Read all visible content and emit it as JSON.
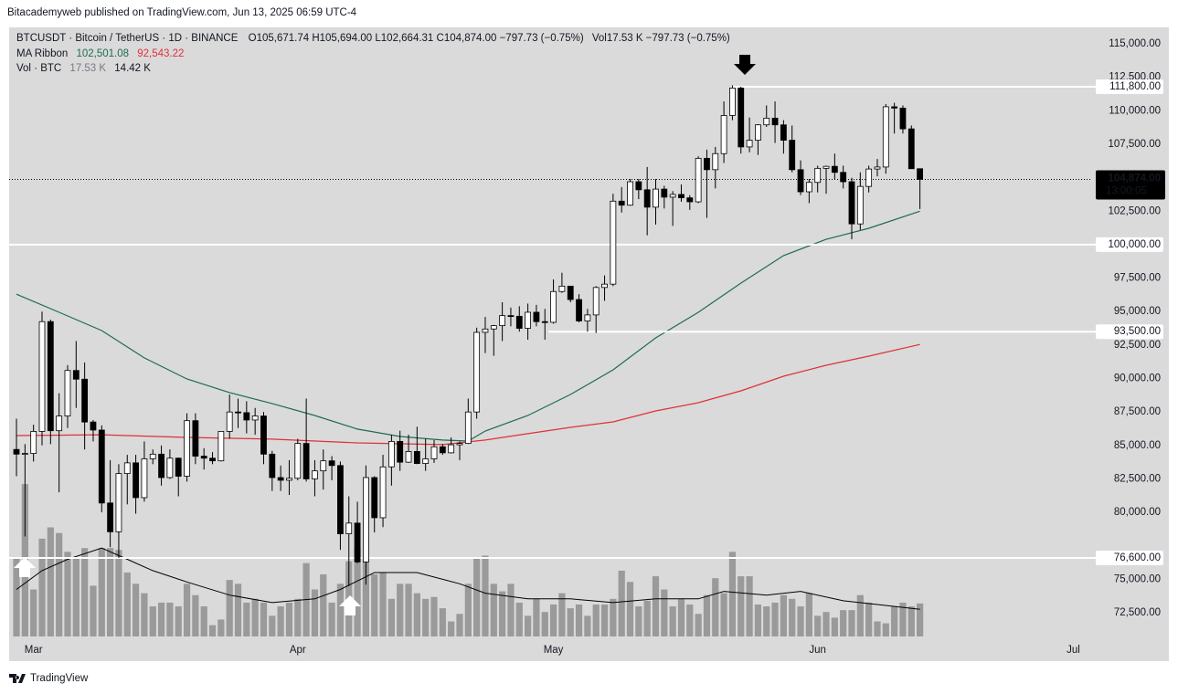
{
  "header": {
    "attribution": "Bitacademyweb published on TradingView.com, Jun 13, 2025 06:59 UTC-4",
    "symbol": "BTCUSDT · Bitcoin / TetherUS · 1D · BINANCE",
    "quote": "O105,671.74 H105,694.00 L102,664.31 C104,874.00 −797.73 (−0.75%)",
    "volume": "Vol17.53 K −797.73 (−0.75%)",
    "ma_label": "MA Ribbon",
    "ma_fast": "102,501.08",
    "ma_slow": "92,543.22",
    "vol_label": "Vol · BTC",
    "vol_value": "17.53 K",
    "vol_ma": "14.42 K"
  },
  "chart_data": {
    "type": "candlestick",
    "up_color": "#ffffff",
    "down_color": "#000000",
    "ohlc": [
      [
        84700,
        87000,
        82700,
        84350
      ],
      [
        84350,
        85100,
        78200,
        84400
      ],
      [
        84400,
        86550,
        83800,
        86050
      ],
      [
        86050,
        95000,
        85000,
        94250
      ],
      [
        94250,
        94400,
        85100,
        86100
      ],
      [
        86100,
        88900,
        81500,
        87200
      ],
      [
        87200,
        91000,
        86300,
        90600
      ],
      [
        90600,
        92800,
        87800,
        89950
      ],
      [
        89950,
        91200,
        84700,
        86750
      ],
      [
        86750,
        86900,
        85300,
        86150
      ],
      [
        86150,
        86500,
        80000,
        80700
      ],
      [
        80700,
        83900,
        77400,
        78550
      ],
      [
        78550,
        83600,
        76600,
        82900
      ],
      [
        82900,
        84300,
        80600,
        83700
      ],
      [
        83700,
        84300,
        79900,
        81100
      ],
      [
        81100,
        85300,
        80800,
        84000
      ],
      [
        84000,
        84700,
        83600,
        84350
      ],
      [
        84350,
        85000,
        82000,
        82600
      ],
      [
        82600,
        84700,
        82500,
        84050
      ],
      [
        84050,
        84100,
        81200,
        82700
      ],
      [
        82700,
        87400,
        82300,
        86850
      ],
      [
        86850,
        87400,
        83600,
        84200
      ],
      [
        84200,
        84800,
        83200,
        84050
      ],
      [
        84050,
        84500,
        83600,
        83850
      ],
      [
        83850,
        86000,
        83800,
        86050
      ],
      [
        86050,
        88800,
        85500,
        87500
      ],
      [
        87500,
        88500,
        86300,
        87450
      ],
      [
        87450,
        88300,
        85900,
        86900
      ],
      [
        86900,
        87800,
        85800,
        87200
      ],
      [
        87200,
        87500,
        83600,
        84350
      ],
      [
        84350,
        84600,
        81600,
        82600
      ],
      [
        82600,
        83500,
        81600,
        82400
      ],
      [
        82400,
        83900,
        81300,
        82550
      ],
      [
        82550,
        85500,
        82400,
        85150
      ],
      [
        85150,
        88500,
        82300,
        82500
      ],
      [
        82500,
        83900,
        81200,
        83100
      ],
      [
        83100,
        84700,
        81700,
        83850
      ],
      [
        83850,
        84200,
        82400,
        83500
      ],
      [
        83500,
        83800,
        77200,
        78400
      ],
      [
        78400,
        81200,
        74500,
        79200
      ],
      [
        79200,
        80800,
        76200,
        76300
      ],
      [
        76300,
        83500,
        74600,
        82600
      ],
      [
        82600,
        82700,
        78500,
        79600
      ],
      [
        79600,
        84300,
        78900,
        83400
      ],
      [
        83400,
        85800,
        82000,
        85300
      ],
      [
        85300,
        86100,
        83100,
        83750
      ],
      [
        83750,
        85800,
        83700,
        84550
      ],
      [
        84550,
        86400,
        83600,
        83650
      ],
      [
        83650,
        85500,
        83100,
        84000
      ],
      [
        84000,
        85400,
        83700,
        84900
      ],
      [
        84900,
        85100,
        84300,
        84450
      ],
      [
        84450,
        85600,
        84400,
        85050
      ],
      [
        85050,
        85300,
        83900,
        85150
      ],
      [
        85150,
        88500,
        85100,
        87500
      ],
      [
        87500,
        93800,
        87000,
        93450
      ],
      [
        93450,
        94600,
        91900,
        93700
      ],
      [
        93700,
        94000,
        91700,
        93950
      ],
      [
        93950,
        95700,
        92800,
        94700
      ],
      [
        94700,
        95300,
        93900,
        94650
      ],
      [
        94650,
        95400,
        93500,
        93750
      ],
      [
        93750,
        95600,
        92900,
        94950
      ],
      [
        94950,
        95500,
        93900,
        94250
      ],
      [
        94250,
        95200,
        92900,
        94200
      ],
      [
        94200,
        97400,
        94100,
        96500
      ],
      [
        96500,
        97900,
        96400,
        96900
      ],
      [
        96900,
        96900,
        95700,
        95900
      ],
      [
        95900,
        96300,
        94200,
        94300
      ],
      [
        94300,
        95200,
        93500,
        94750
      ],
      [
        94750,
        96900,
        93400,
        96800
      ],
      [
        96800,
        97700,
        95800,
        97050
      ],
      [
        97050,
        103800,
        96900,
        103250
      ],
      [
        103250,
        104300,
        102400,
        102950
      ],
      [
        102950,
        104900,
        102900,
        104700
      ],
      [
        104700,
        104900,
        103400,
        104100
      ],
      [
        104100,
        105800,
        100700,
        102800
      ],
      [
        102800,
        104900,
        101500,
        104150
      ],
      [
        104150,
        104400,
        102700,
        103550
      ],
      [
        103550,
        104000,
        101400,
        103750
      ],
      [
        103750,
        104500,
        103200,
        103500
      ],
      [
        103500,
        103700,
        102600,
        103200
      ],
      [
        103200,
        106600,
        103100,
        106450
      ],
      [
        106450,
        107100,
        102000,
        105600
      ],
      [
        105600,
        107300,
        104200,
        106800
      ],
      [
        106800,
        110700,
        106100,
        109650
      ],
      [
        109650,
        111900,
        109300,
        111700
      ],
      [
        111700,
        111800,
        106800,
        107300
      ],
      [
        107300,
        109500,
        106900,
        107800
      ],
      [
        107800,
        109000,
        106700,
        108950
      ],
      [
        108950,
        110400,
        108800,
        109450
      ],
      [
        109450,
        110700,
        107600,
        108950
      ],
      [
        108950,
        109300,
        106800,
        107800
      ],
      [
        107800,
        108900,
        105400,
        105600
      ],
      [
        105600,
        106300,
        103700,
        103950
      ],
      [
        103950,
        104900,
        103100,
        104650
      ],
      [
        104650,
        105900,
        103900,
        105700
      ],
      [
        105700,
        105900,
        103800,
        105850
      ],
      [
        105850,
        106800,
        104900,
        105400
      ],
      [
        105400,
        105900,
        104200,
        104700
      ],
      [
        104700,
        105000,
        100400,
        101550
      ],
      [
        101550,
        105400,
        101100,
        104350
      ],
      [
        104350,
        105900,
        103900,
        105650
      ],
      [
        105650,
        106400,
        105100,
        105800
      ],
      [
        105800,
        110500,
        105300,
        110300
      ],
      [
        110300,
        110600,
        108300,
        110200
      ],
      [
        110200,
        110400,
        108300,
        108650
      ],
      [
        108650,
        108900,
        105700,
        105671.74
      ],
      [
        105671.74,
        105694,
        102664.31,
        104874
      ]
    ],
    "xlim": [
      -0.86,
      126.2
    ],
    "xticks": [
      {
        "value": 2,
        "label": "Mar"
      },
      {
        "value": 33,
        "label": "Apr"
      },
      {
        "value": 63,
        "label": "May"
      },
      {
        "value": 94,
        "label": "Jun"
      },
      {
        "value": 124,
        "label": "Jul"
      }
    ],
    "ylim": [
      70730,
      116230
    ],
    "yticks": [
      {
        "value": 115000,
        "label": "115,000.00"
      },
      {
        "value": 112500,
        "label": "112,500.00"
      },
      {
        "value": 110000,
        "label": "110,000.00"
      },
      {
        "value": 107500,
        "label": "107,500.00"
      },
      {
        "value": 102500,
        "label": "102,500.00"
      },
      {
        "value": 97500,
        "label": "97,500.00"
      },
      {
        "value": 95000,
        "label": "95,000.00"
      },
      {
        "value": 92500,
        "label": "92,500.00"
      },
      {
        "value": 90000,
        "label": "90,000.00"
      },
      {
        "value": 87500,
        "label": "87,500.00"
      },
      {
        "value": 85000,
        "label": "85,000.00"
      },
      {
        "value": 82500,
        "label": "82,500.00"
      },
      {
        "value": 80000,
        "label": "80,000.00"
      },
      {
        "value": 75000,
        "label": "75,000.00"
      },
      {
        "value": 72500,
        "label": "72,500.00"
      }
    ],
    "lines": [
      {
        "color": "#1e6b52",
        "x": [
          0,
          5,
          10,
          15,
          20,
          25,
          30,
          35,
          40,
          45,
          50,
          53,
          55,
          60,
          65,
          70,
          75,
          80,
          85,
          90,
          95,
          100,
          106
        ],
        "values": [
          96300,
          94950,
          93580,
          91540,
          89970,
          88950,
          88130,
          87240,
          86220,
          85670,
          85400,
          85330,
          86080,
          87240,
          88810,
          90650,
          93040,
          94950,
          97130,
          99180,
          100400,
          101220,
          102501.08
        ]
      },
      {
        "color": "#e0303a",
        "x": [
          0,
          10,
          20,
          30,
          40,
          50,
          55,
          60,
          65,
          70,
          75,
          80,
          85,
          90,
          95,
          100,
          106
        ],
        "values": [
          85740,
          85800,
          85600,
          85470,
          85190,
          85060,
          85400,
          85880,
          86350,
          86760,
          87580,
          88190,
          89080,
          90170,
          90990,
          91670,
          92543.22
        ]
      }
    ],
    "volume": {
      "color": "#9a9a9a",
      "ylim": [
        0,
        100
      ],
      "values": [
        42,
        81,
        25,
        52,
        58,
        55,
        45,
        42,
        47,
        27,
        47,
        47,
        46,
        34,
        28,
        23,
        16,
        18,
        18,
        16,
        28,
        22,
        16,
        6,
        9,
        30,
        28,
        18,
        20,
        18,
        11,
        16,
        18,
        20,
        39,
        25,
        33,
        18,
        28,
        40,
        47,
        42,
        33,
        34,
        20,
        28,
        28,
        23,
        20,
        21,
        15,
        8,
        12,
        28,
        42,
        43,
        28,
        24,
        28,
        18,
        11,
        20,
        13,
        17,
        23,
        15,
        17,
        11,
        17,
        17,
        20,
        35,
        29,
        16,
        19,
        32,
        25,
        16,
        20,
        17,
        12,
        22,
        31,
        23,
        45,
        32,
        32,
        17,
        16,
        18,
        22,
        20,
        16,
        23,
        11,
        13,
        10,
        14,
        14,
        22,
        18,
        8,
        7,
        16,
        18,
        16,
        17.53
      ],
      "ma": {
        "color": "#000000",
        "x": [
          0,
          3,
          6,
          10,
          13,
          16,
          20,
          25,
          30,
          35,
          38,
          42,
          47,
          52,
          55,
          60,
          65,
          70,
          75,
          80,
          83,
          88,
          92,
          97,
          101,
          106
        ],
        "values": [
          25,
          35,
          41,
          47,
          41,
          35,
          29,
          22,
          18,
          20,
          25,
          34,
          34,
          28,
          23,
          20,
          20,
          18,
          20,
          20,
          24,
          22,
          24,
          19,
          17,
          14.42
        ]
      }
    },
    "levels": [
      {
        "value": 111800,
        "label": "111,800.00"
      },
      {
        "value": 100000,
        "label": "100,000.00"
      },
      {
        "value": 93500,
        "label": "93,500.00"
      },
      {
        "value": 76600,
        "label": "76,600.00"
      }
    ],
    "last_price": {
      "value": 104874,
      "label": "104,874.00",
      "countdown": "13:00:05"
    }
  },
  "footer": "TradingView"
}
